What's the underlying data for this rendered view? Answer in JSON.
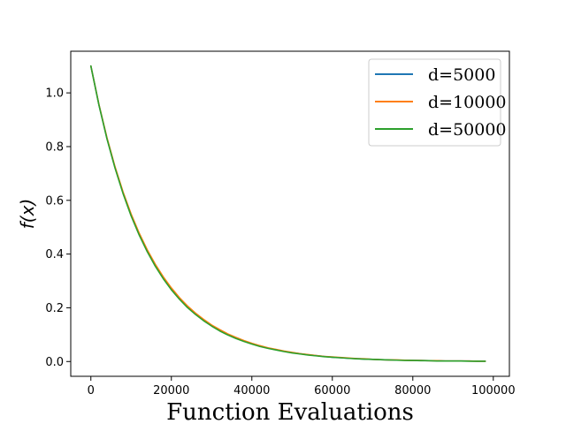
{
  "chart_data": {
    "type": "line",
    "title": "",
    "xlabel": "Function Evaluations",
    "ylabel": "f(x)",
    "xlim": [
      -5000,
      104000
    ],
    "ylim": [
      -0.055,
      1.155
    ],
    "xticks": [
      0,
      20000,
      40000,
      60000,
      80000,
      100000
    ],
    "yticks": [
      0.0,
      0.2,
      0.4,
      0.6,
      0.8,
      1.0
    ],
    "xtick_labels": [
      "0",
      "20000",
      "40000",
      "60000",
      "80000",
      "100000"
    ],
    "ytick_labels": [
      "0.0",
      "0.2",
      "0.4",
      "0.6",
      "0.8",
      "1.0"
    ],
    "grid": false,
    "legend_position": "top-right",
    "x": [
      0,
      2000,
      4000,
      6000,
      8000,
      10000,
      12000,
      14000,
      16000,
      18000,
      20000,
      22000,
      24000,
      26000,
      28000,
      30000,
      32000,
      34000,
      36000,
      38000,
      40000,
      42000,
      44000,
      46000,
      48000,
      50000,
      52000,
      54000,
      56000,
      58000,
      60000,
      62000,
      64000,
      66000,
      68000,
      70000,
      72000,
      74000,
      76000,
      78000,
      80000,
      82000,
      84000,
      86000,
      88000,
      90000,
      92000,
      94000,
      96000,
      98000
    ],
    "series": [
      {
        "name": "d=5000",
        "color": "#1f77b4",
        "values": [
          1.1,
          0.956,
          0.831,
          0.722,
          0.628,
          0.546,
          0.474,
          0.412,
          0.358,
          0.311,
          0.271,
          0.235,
          0.204,
          0.178,
          0.154,
          0.134,
          0.117,
          0.101,
          0.088,
          0.077,
          0.067,
          0.058,
          0.05,
          0.044,
          0.038,
          0.033,
          0.029,
          0.025,
          0.022,
          0.019,
          0.016,
          0.014,
          0.012,
          0.011,
          0.009,
          0.008,
          0.007,
          0.006,
          0.005,
          0.005,
          0.004,
          0.004,
          0.003,
          0.003,
          0.002,
          0.002,
          0.002,
          0.002,
          0.001,
          0.001
        ]
      },
      {
        "name": "d=10000",
        "color": "#ff7f0e",
        "values": [
          1.1,
          0.957,
          0.833,
          0.725,
          0.631,
          0.549,
          0.478,
          0.416,
          0.362,
          0.315,
          0.274,
          0.238,
          0.207,
          0.18,
          0.157,
          0.136,
          0.119,
          0.103,
          0.09,
          0.078,
          0.068,
          0.059,
          0.051,
          0.045,
          0.039,
          0.034,
          0.029,
          0.026,
          0.022,
          0.019,
          0.017,
          0.015,
          0.013,
          0.011,
          0.01,
          0.008,
          0.007,
          0.006,
          0.006,
          0.005,
          0.004,
          0.004,
          0.003,
          0.003,
          0.002,
          0.002,
          0.002,
          0.002,
          0.001,
          0.001
        ]
      },
      {
        "name": "d=50000",
        "color": "#2ca02c",
        "values": [
          1.1,
          0.955,
          0.829,
          0.72,
          0.625,
          0.542,
          0.471,
          0.409,
          0.355,
          0.308,
          0.267,
          0.232,
          0.201,
          0.175,
          0.152,
          0.132,
          0.114,
          0.099,
          0.086,
          0.075,
          0.065,
          0.056,
          0.049,
          0.043,
          0.037,
          0.032,
          0.028,
          0.024,
          0.021,
          0.018,
          0.016,
          0.014,
          0.012,
          0.01,
          0.009,
          0.008,
          0.007,
          0.006,
          0.005,
          0.004,
          0.004,
          0.003,
          0.003,
          0.002,
          0.002,
          0.002,
          0.002,
          0.001,
          0.001,
          0.001
        ]
      }
    ]
  }
}
